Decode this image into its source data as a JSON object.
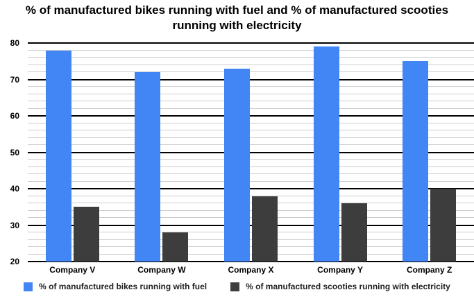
{
  "chart_data": {
    "type": "bar",
    "title": "% of manufactured bikes running with fuel and % of manufactured scooties running with electricity",
    "categories": [
      "Company V",
      "Company W",
      "Company X",
      "Company Y",
      "Company Z"
    ],
    "series": [
      {
        "name": "% of manufactured bikes running with fuel",
        "color": "#4285f4",
        "values": [
          78,
          72,
          73,
          79,
          75
        ]
      },
      {
        "name": "% of manufactured scooties running with electricity",
        "color": "#3d3d3d",
        "values": [
          35,
          28,
          38,
          36,
          40
        ]
      }
    ],
    "xlabel": "",
    "ylabel": "",
    "ylim": [
      20,
      80
    ],
    "y_ticks": [
      20,
      30,
      40,
      50,
      60,
      70,
      80
    ],
    "y_major_step": 10,
    "y_minor_step": 2,
    "grid": true,
    "legend_position": "bottom"
  },
  "colors": {
    "background": "#ffffff",
    "major_gridline": "#000000",
    "minor_gridline": "#cccccc",
    "title_text": "#000000",
    "axis_text": "#000000",
    "legend_text": "#222222"
  }
}
